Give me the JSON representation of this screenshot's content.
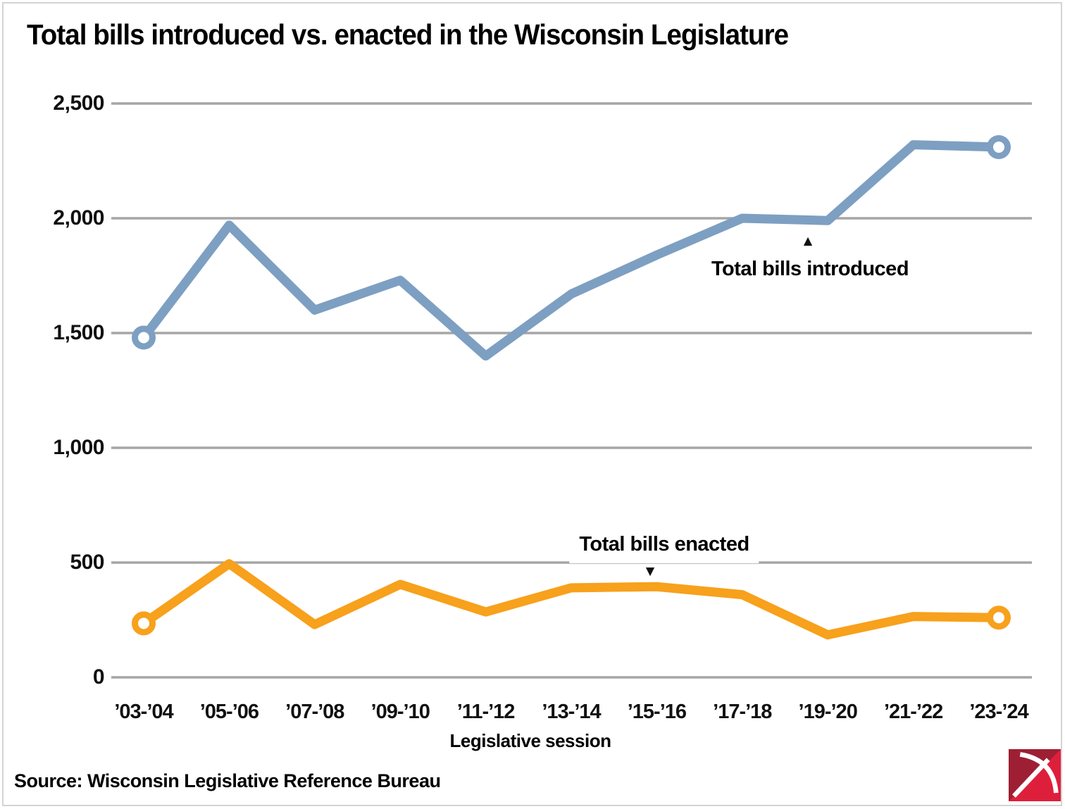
{
  "title": "Total bills introduced vs. enacted in the Wisconsin Legislature",
  "source": "Source: Wisconsin Legislative Reference Bureau",
  "colors": {
    "introduced": "#7d9fc2",
    "enacted": "#f7a11c",
    "gridline": "#a6a6a6",
    "text": "#000000",
    "logo_dark_red": "#9e1f33",
    "logo_bright_red": "#de1f3b",
    "logo_pick_white": "#ffffff"
  },
  "annotations": {
    "introduced": {
      "label": "Total bills introduced",
      "arrow": "▲"
    },
    "enacted": {
      "label": "Total bills enacted",
      "arrow": "▼"
    }
  },
  "chart_data": {
    "type": "line",
    "categories": [
      "’03-’04",
      "’05-’06",
      "’07-’08",
      "’09-’10",
      "’11-’12",
      "’13-’14",
      "’15-’16",
      "’17-’18",
      "’19-’20",
      "’21-’22",
      "’23-’24"
    ],
    "series": [
      {
        "name": "Total bills introduced",
        "color": "#7d9fc2",
        "values": [
          1480,
          1970,
          1600,
          1730,
          1400,
          1670,
          1840,
          2000,
          1990,
          2320,
          2310
        ]
      },
      {
        "name": "Total bills enacted",
        "color": "#f7a11c",
        "values": [
          235,
          495,
          230,
          405,
          285,
          390,
          395,
          360,
          185,
          265,
          260
        ]
      }
    ],
    "xlabel": "Legislative session",
    "ylabel": "",
    "ylim": [
      0,
      2500
    ],
    "y_ticks": [
      2500,
      2000,
      1500,
      1000,
      500,
      0
    ],
    "y_tick_labels": [
      "2,500",
      "2,000",
      "1,500",
      "1,000",
      "500",
      "0"
    ],
    "grid": true,
    "legend_position": "inline-annotations",
    "endpoint_markers": "open-circle-first-last"
  }
}
